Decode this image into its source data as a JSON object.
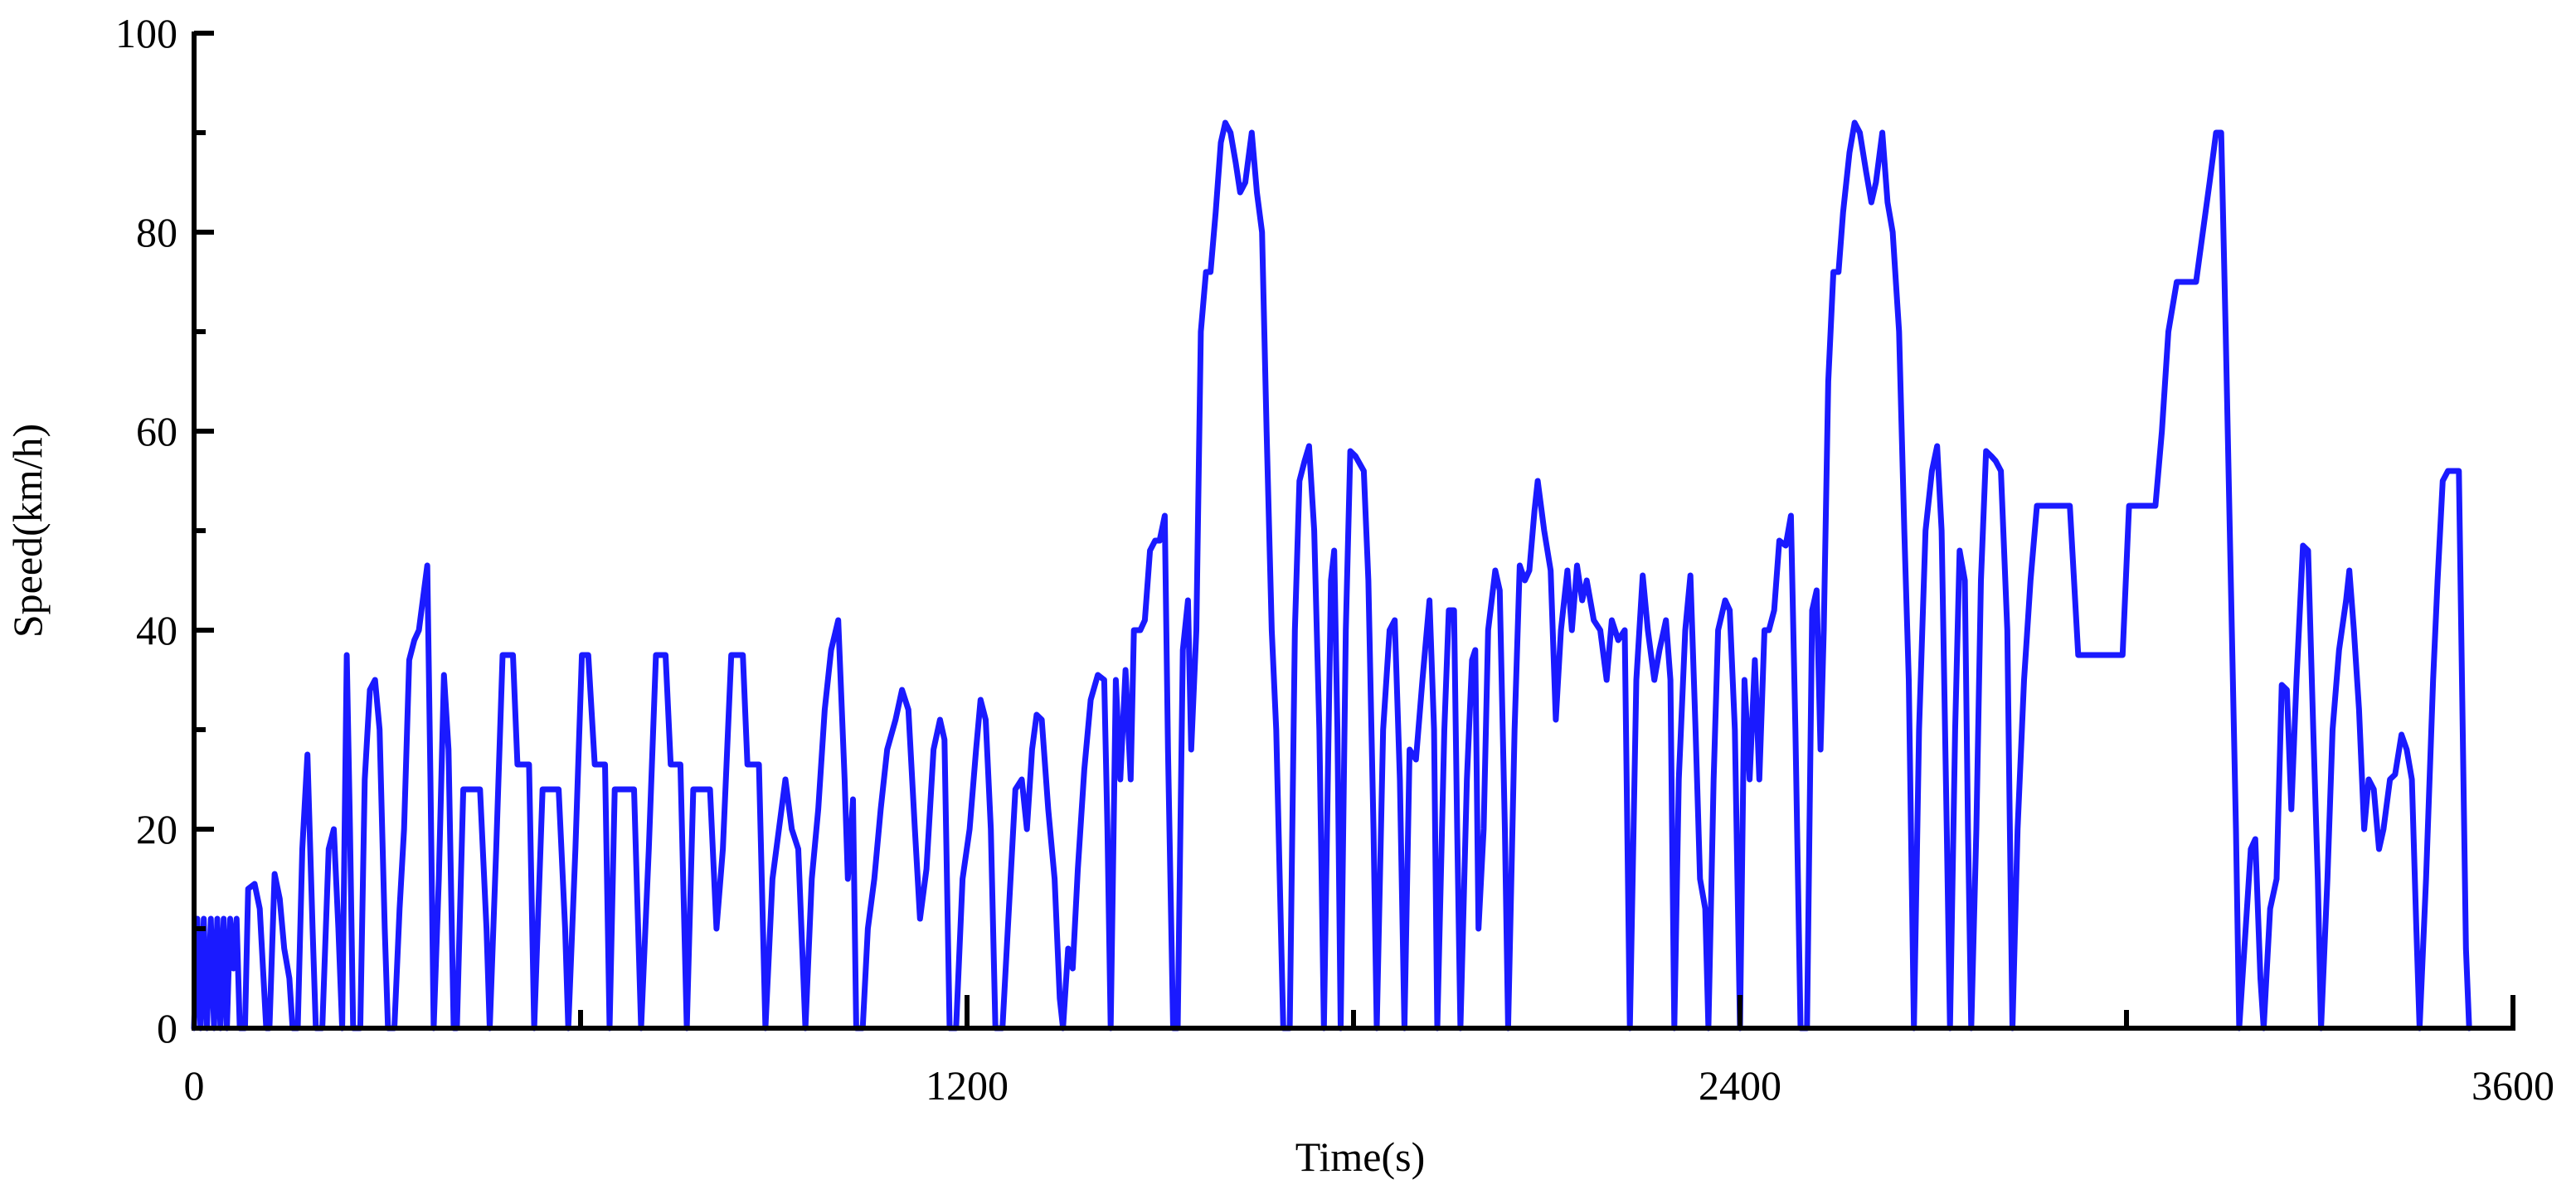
{
  "chart_data": {
    "type": "line",
    "xlabel": "Time(s)",
    "ylabel": "Speed(km/h)",
    "color": "#1a1aff",
    "xlim": [
      0,
      3600
    ],
    "xticks": [
      0,
      1200,
      2400,
      3600
    ],
    "xticks_minor": [
      600,
      1800,
      3000
    ],
    "ylim": [
      0,
      100
    ],
    "yticks": [
      0,
      20,
      40,
      60,
      80,
      100
    ],
    "yticks_minor": [
      10,
      30,
      50,
      70,
      90
    ],
    "grid": false,
    "x": [
      0,
      5,
      10,
      15,
      20,
      26,
      31,
      36,
      41,
      46,
      51,
      56,
      61,
      66,
      71,
      79,
      84,
      94,
      102,
      112,
      117,
      125,
      133,
      140,
      148,
      153,
      161,
      168,
      176,
      184,
      189,
      199,
      209,
      217,
      224,
      230,
      237,
      242,
      247,
      258,
      265,
      273,
      281,
      288,
      296,
      301,
      311,
      319,
      326,
      334,
      342,
      349,
      357,
      362,
      367,
      372,
      380,
      388,
      395,
      403,
      408,
      418,
      444,
      454,
      459,
      469,
      479,
      495,
      502,
      520,
      528,
      541,
      566,
      576,
      581,
      592,
      602,
      612,
      622,
      638,
      645,
      653,
      683,
      694,
      706,
      717,
      732,
      740,
      755,
      765,
      775,
      801,
      811,
      821,
      834,
      852,
      859,
      877,
      887,
      898,
      908,
      918,
      928,
      938,
      949,
      959,
      969,
      979,
      989,
      1000,
      1010,
      1015,
      1023,
      1028,
      1038,
      1046,
      1056,
      1066,
      1076,
      1089,
      1099,
      1109,
      1119,
      1127,
      1137,
      1148,
      1158,
      1165,
      1173,
      1183,
      1193,
      1204,
      1214,
      1221,
      1229,
      1237,
      1244,
      1255,
      1265,
      1275,
      1285,
      1293,
      1301,
      1308,
      1316,
      1326,
      1336,
      1344,
      1349,
      1357,
      1364,
      1372,
      1382,
      1392,
      1403,
      1413,
      1418,
      1423,
      1431,
      1438,
      1446,
      1454,
      1459,
      1469,
      1476,
      1484,
      1492,
      1499,
      1507,
      1512,
      1520,
      1527,
      1535,
      1543,
      1548,
      1556,
      1563,
      1571,
      1578,
      1586,
      1594,
      1601,
      1609,
      1617,
      1624,
      1632,
      1642,
      1650,
      1658,
      1665,
      1673,
      1680,
      1691,
      1701,
      1709,
      1716,
      1724,
      1731,
      1739,
      1747,
      1754,
      1765,
      1770,
      1775,
      1780,
      1788,
      1795,
      1803,
      1816,
      1823,
      1831,
      1836,
      1846,
      1856,
      1864,
      1872,
      1879,
      1887,
      1897,
      1907,
      1918,
      1925,
      1930,
      1941,
      1948,
      1956,
      1961,
      1966,
      1976,
      1984,
      1989,
      1994,
      2002,
      2009,
      2020,
      2027,
      2035,
      2040,
      2050,
      2058,
      2066,
      2073,
      2081,
      2086,
      2096,
      2106,
      2114,
      2122,
      2132,
      2139,
      2147,
      2155,
      2162,
      2173,
      2183,
      2193,
      2201,
      2211,
      2221,
      2229,
      2239,
      2249,
      2257,
      2267,
      2275,
      2285,
      2292,
      2298,
      2305,
      2315,
      2323,
      2331,
      2338,
      2346,
      2351,
      2359,
      2366,
      2377,
      2384,
      2392,
      2400,
      2407,
      2415,
      2423,
      2430,
      2438,
      2445,
      2453,
      2461,
      2471,
      2479,
      2486,
      2494,
      2504,
      2512,
      2519,
      2525,
      2530,
      2537,
      2545,
      2553,
      2560,
      2570,
      2578,
      2586,
      2596,
      2604,
      2611,
      2621,
      2629,
      2637,
      2647,
      2655,
      2662,
      2670,
      2678,
      2688,
      2698,
      2706,
      2713,
      2721,
      2726,
      2734,
      2741,
      2749,
      2754,
      2759,
      2767,
      2774,
      2782,
      2790,
      2797,
      2805,
      2815,
      2823,
      2831,
      2841,
      2851,
      2861,
      2912,
      2925,
      2994,
      3004,
      3045,
      3055,
      3065,
      3078,
      3108,
      3129,
      3139,
      3147,
      3154,
      3162,
      3170,
      3175,
      3185,
      3193,
      3200,
      3208,
      3213,
      3223,
      3233,
      3241,
      3249,
      3256,
      3264,
      3274,
      3282,
      3290,
      3297,
      3302,
      3312,
      3320,
      3330,
      3341,
      3346,
      3353,
      3361,
      3369,
      3376,
      3384,
      3392,
      3399,
      3409,
      3417,
      3427,
      3435,
      3443,
      3450,
      3455,
      3465,
      3476,
      3483,
      3491,
      3499,
      3516,
      3522,
      3527,
      3532
    ],
    "values": [
      0,
      11,
      0,
      11,
      0,
      11,
      0,
      11,
      0,
      11,
      0,
      11,
      6,
      11,
      0,
      0,
      14,
      14.5,
      12,
      0,
      0,
      15.5,
      13,
      8,
      5,
      0,
      0,
      18,
      27.5,
      10,
      0,
      0,
      18,
      20,
      10,
      0,
      37.5,
      20,
      0,
      0,
      25,
      34,
      35,
      30,
      10,
      0,
      0,
      12,
      20,
      37,
      39,
      40,
      44,
      46.5,
      25,
      0,
      15,
      35.5,
      28,
      0,
      0,
      24,
      24,
      10,
      0,
      18,
      37.5,
      37.5,
      26.5,
      26.5,
      0,
      24,
      24,
      10,
      0,
      18,
      37.5,
      37.5,
      26.5,
      26.5,
      0,
      24,
      24,
      0,
      18,
      37.5,
      37.5,
      26.5,
      26.5,
      0,
      24,
      24,
      10,
      18,
      37.5,
      37.5,
      26.5,
      26.5,
      0,
      15,
      20,
      25,
      20,
      18,
      0,
      15,
      22,
      32,
      38,
      41,
      25,
      15,
      23,
      0,
      0,
      10,
      15,
      22,
      28,
      31,
      34,
      32,
      20,
      11,
      16,
      28,
      31,
      29,
      0,
      0,
      15,
      20,
      28,
      33,
      31,
      20,
      0,
      0,
      12,
      24,
      25,
      20,
      28,
      31.5,
      31,
      22,
      15,
      3,
      0,
      8,
      6,
      16,
      26,
      33,
      35.5,
      35,
      20,
      0,
      35,
      25,
      36,
      25,
      40,
      40,
      41,
      48,
      49,
      49,
      51.5,
      28,
      0,
      0,
      38,
      43,
      28,
      40,
      70,
      76,
      76,
      82,
      89,
      91,
      90,
      87,
      84,
      85,
      90,
      84,
      80,
      60,
      40,
      30,
      0,
      0,
      40,
      55,
      57,
      58.5,
      50,
      30,
      0,
      45,
      48,
      30,
      0,
      40,
      58,
      57.5,
      56,
      45,
      20,
      0,
      30,
      40,
      41,
      25,
      0,
      28,
      27,
      35,
      43,
      30,
      0,
      30,
      42,
      42,
      20,
      0,
      25,
      37,
      38,
      10,
      20,
      40,
      46,
      44,
      20,
      0,
      30,
      46.5,
      45,
      46,
      52,
      55,
      50,
      46,
      31,
      40,
      46,
      40,
      46.5,
      43,
      45,
      41,
      40,
      35,
      41,
      39,
      40,
      0,
      35,
      45.5,
      40,
      35,
      38,
      41,
      35,
      0,
      25,
      40,
      45.5,
      30,
      15,
      12,
      0,
      25,
      40,
      43,
      42,
      30,
      0,
      35,
      25,
      37,
      25,
      40,
      40,
      42,
      49,
      48.5,
      51.5,
      30,
      0,
      0,
      42,
      44,
      28,
      40,
      65,
      76,
      76,
      82,
      88,
      91,
      90,
      86,
      83,
      85,
      90,
      83,
      80,
      70,
      50,
      35,
      0,
      30,
      50,
      56,
      58.5,
      50,
      20,
      0,
      30,
      48,
      45,
      20,
      0,
      20,
      45,
      58,
      57.5,
      57,
      56,
      40,
      0,
      20,
      35,
      45,
      52.5,
      52.5,
      37.5,
      37.5,
      52.5,
      52.5,
      60,
      70,
      75,
      75,
      85,
      90,
      90,
      70,
      45,
      20,
      0,
      10,
      18,
      19,
      5,
      0,
      12,
      15,
      34.5,
      34,
      22,
      35,
      48.5,
      48,
      30,
      15,
      0,
      15,
      30,
      38,
      43,
      46,
      40,
      32,
      20,
      25,
      24,
      18,
      20,
      25,
      25.5,
      29.5,
      28,
      25,
      10,
      0,
      15,
      35,
      45,
      55,
      56,
      56,
      30,
      8,
      0
    ]
  }
}
